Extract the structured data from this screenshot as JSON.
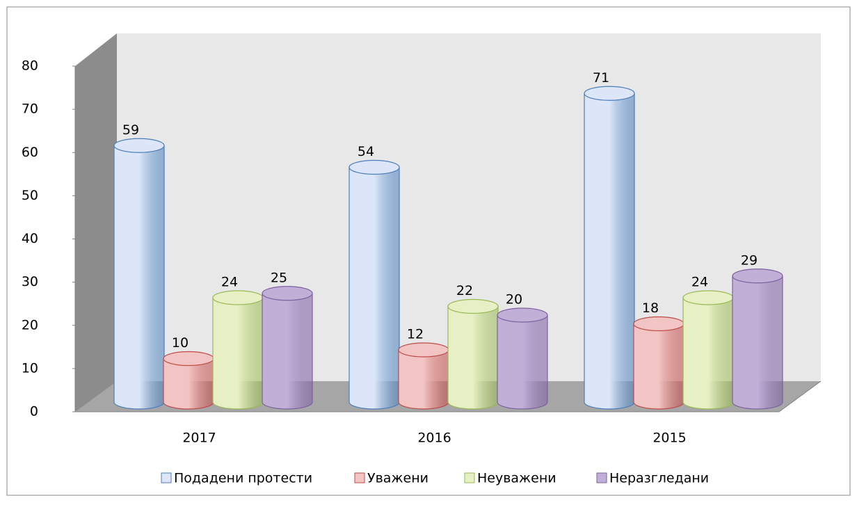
{
  "chart_data": {
    "type": "bar3d",
    "categories": [
      "2017",
      "2016",
      "2015"
    ],
    "series": [
      {
        "name": "Подадени протести",
        "color": "#4a7ebb",
        "fill": "#dce6f8",
        "values": [
          59,
          54,
          71
        ]
      },
      {
        "name": "Уважени",
        "color": "#be4b48",
        "fill": "#f2c4c3",
        "values": [
          10,
          12,
          18
        ]
      },
      {
        "name": "Неуважени",
        "color": "#98b954",
        "fill": "#e6f0c4",
        "values": [
          24,
          22,
          24
        ]
      },
      {
        "name": "Неразгледани",
        "color": "#7d60a0",
        "fill": "#c1afd8",
        "values": [
          25,
          20,
          29
        ]
      }
    ],
    "ylim": [
      0,
      80
    ],
    "yticks": [
      0,
      10,
      20,
      30,
      40,
      50,
      60,
      70,
      80
    ],
    "grid": false,
    "data_labels": true,
    "legend": "bottom"
  }
}
